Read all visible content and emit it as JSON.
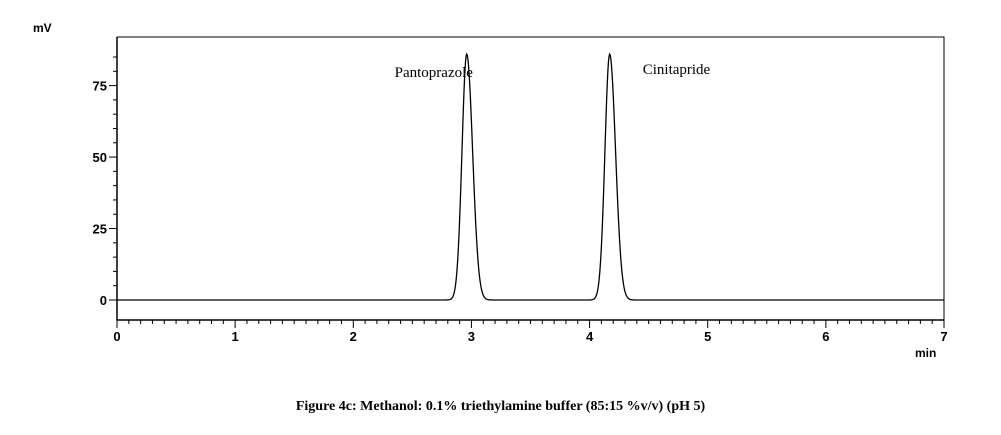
{
  "chart_data": {
    "type": "line",
    "xlabel": "min",
    "ylabel": "mV",
    "xlim": [
      0,
      7
    ],
    "ylim": [
      -7,
      92
    ],
    "x_ticks": [
      0,
      1,
      2,
      3,
      4,
      5,
      6,
      7
    ],
    "y_ticks": [
      0,
      25,
      50,
      75
    ],
    "grid": false,
    "series": [
      {
        "peaks": [
          {
            "center": 2.96,
            "height": 86,
            "width": 0.04
          },
          {
            "center": 4.17,
            "height": 86,
            "width": 0.04
          }
        ]
      }
    ],
    "annotations": [
      {
        "text": "Pantoprazole",
        "x": 2.35,
        "y": 78
      },
      {
        "text": "Cinitapride",
        "x": 4.45,
        "y": 79
      }
    ]
  },
  "caption": "Figure 4c: Methanol: 0.1% triethylamine buffer (85:15 %v/v) (pH 5)"
}
